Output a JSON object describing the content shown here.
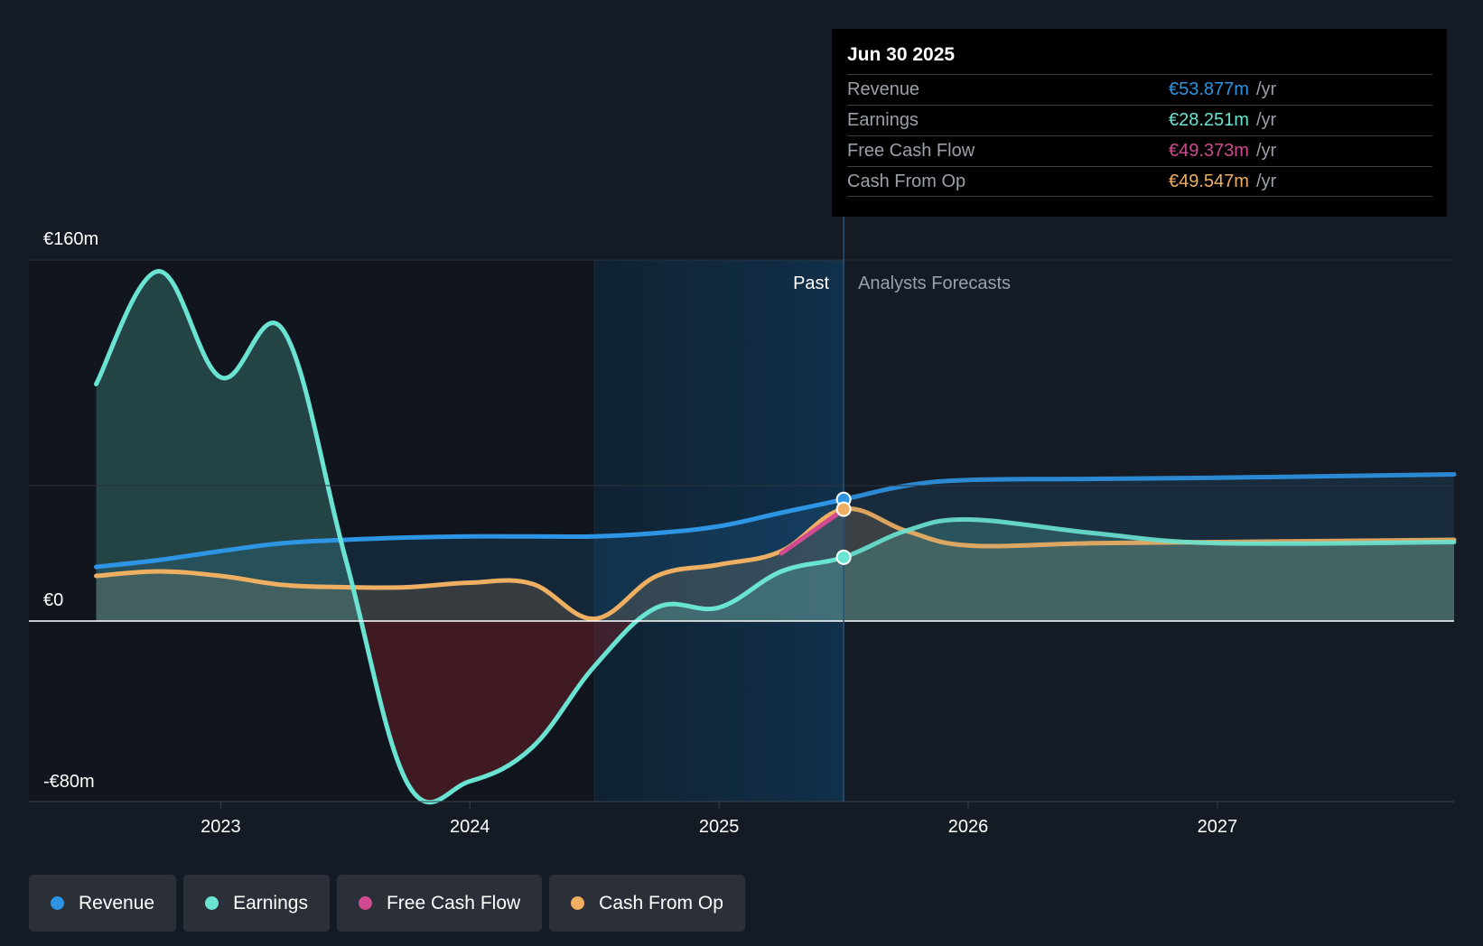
{
  "colors": {
    "revenue": "#2d95e3",
    "earnings": "#6ae3d2",
    "free_cash_flow": "#d04a91",
    "cash_from_op": "#eeaf63",
    "background": "#151b24"
  },
  "tooltip": {
    "date": "Jun 30 2025",
    "rows": [
      {
        "label": "Revenue",
        "value": "€53.877m",
        "unit": "/yr",
        "color": "#2d95e3"
      },
      {
        "label": "Earnings",
        "value": "€28.251m",
        "unit": "/yr",
        "color": "#6ae3d2"
      },
      {
        "label": "Free Cash Flow",
        "value": "€49.373m",
        "unit": "/yr",
        "color": "#d04a91"
      },
      {
        "label": "Cash From Op",
        "value": "€49.547m",
        "unit": "/yr",
        "color": "#eeaf63"
      }
    ]
  },
  "legend": [
    {
      "label": "Revenue",
      "color": "#2d95e3"
    },
    {
      "label": "Earnings",
      "color": "#6ae3d2"
    },
    {
      "label": "Free Cash Flow",
      "color": "#d04a91"
    },
    {
      "label": "Cash From Op",
      "color": "#eeaf63"
    }
  ],
  "chart_data": {
    "type": "line",
    "title": "",
    "xlabel": "",
    "ylabel": "",
    "y_ticks": [
      {
        "value": 160,
        "label": "€160m"
      },
      {
        "value": 0,
        "label": "€0"
      },
      {
        "value": -80,
        "label": "-€80m"
      }
    ],
    "x_ticks": [
      {
        "value": 2023,
        "label": "2023"
      },
      {
        "value": 2024,
        "label": "2024"
      },
      {
        "value": 2025,
        "label": "2025"
      },
      {
        "value": 2026,
        "label": "2026"
      },
      {
        "value": 2027,
        "label": "2027"
      }
    ],
    "xlim": [
      2022.23,
      2027.95
    ],
    "ylim": [
      -80,
      160
    ],
    "regions": {
      "past_label": "Past",
      "forecast_label": "Analysts Forecasts",
      "past_end": 2025.5,
      "highlight_start": 2024.5
    },
    "grid": true,
    "legend_position": "bottom-left",
    "series": [
      {
        "name": "Revenue",
        "key": "revenue",
        "points": [
          [
            2022.5,
            24
          ],
          [
            2022.75,
            27
          ],
          [
            2023.0,
            31
          ],
          [
            2023.25,
            34.5
          ],
          [
            2023.5,
            36
          ],
          [
            2023.75,
            37
          ],
          [
            2024.0,
            37.5
          ],
          [
            2024.25,
            37.5
          ],
          [
            2024.5,
            37.5
          ],
          [
            2024.75,
            39
          ],
          [
            2025.0,
            42
          ],
          [
            2025.25,
            48
          ],
          [
            2025.5,
            53.877
          ],
          [
            2025.75,
            60
          ],
          [
            2026.0,
            62.5
          ],
          [
            2026.5,
            63
          ],
          [
            2027.0,
            63.5
          ],
          [
            2027.95,
            65
          ]
        ]
      },
      {
        "name": "Earnings",
        "key": "earnings",
        "points": [
          [
            2022.5,
            105
          ],
          [
            2022.75,
            155
          ],
          [
            2023.0,
            108
          ],
          [
            2023.25,
            129
          ],
          [
            2023.5,
            28
          ],
          [
            2023.75,
            -72
          ],
          [
            2024.0,
            -71
          ],
          [
            2024.25,
            -56
          ],
          [
            2024.5,
            -20
          ],
          [
            2024.75,
            6
          ],
          [
            2025.0,
            6
          ],
          [
            2025.25,
            22
          ],
          [
            2025.5,
            28.251
          ],
          [
            2025.75,
            40
          ],
          [
            2026.0,
            45
          ],
          [
            2026.5,
            39
          ],
          [
            2027.0,
            34.5
          ],
          [
            2027.95,
            35
          ]
        ]
      },
      {
        "name": "Free Cash Flow",
        "key": "free_cash_flow",
        "points": [
          [
            2025.25,
            30
          ],
          [
            2025.5,
            49.373
          ]
        ]
      },
      {
        "name": "Cash From Op",
        "key": "cash_from_op",
        "points": [
          [
            2022.5,
            20
          ],
          [
            2022.75,
            22
          ],
          [
            2023.0,
            20
          ],
          [
            2023.25,
            16
          ],
          [
            2023.5,
            15
          ],
          [
            2023.75,
            15
          ],
          [
            2024.0,
            17
          ],
          [
            2024.25,
            16.5
          ],
          [
            2024.5,
            1
          ],
          [
            2024.75,
            20
          ],
          [
            2025.0,
            25
          ],
          [
            2025.25,
            31
          ],
          [
            2025.5,
            49.547
          ],
          [
            2025.75,
            40
          ],
          [
            2026.0,
            33.5
          ],
          [
            2026.5,
            34.5
          ],
          [
            2027.0,
            35
          ],
          [
            2027.95,
            36
          ]
        ]
      }
    ]
  }
}
